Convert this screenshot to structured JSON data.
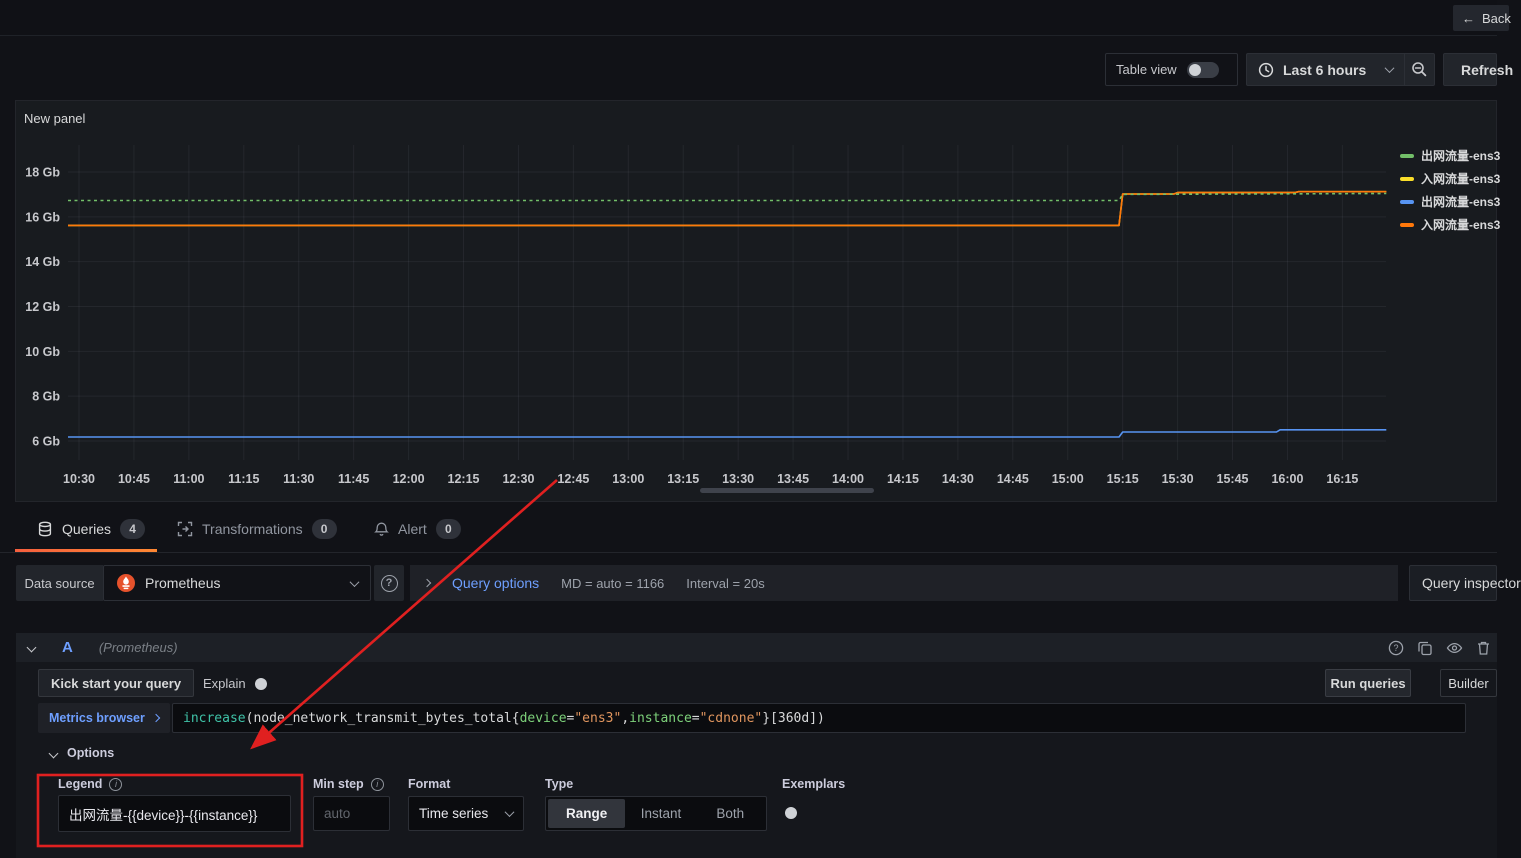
{
  "topbar": {
    "back_label": "Back"
  },
  "toolbar": {
    "table_view_label": "Table view",
    "time_range_label": "Last 6 hours",
    "refresh_label": "Refresh"
  },
  "panel": {
    "title": "New panel",
    "legend": [
      {
        "label": "出网流量-ens3",
        "color": "#73BF69"
      },
      {
        "label": "入网流量-ens3",
        "color": "#FADE2A"
      },
      {
        "label": "出网流量-ens3",
        "color": "#5794F2"
      },
      {
        "label": "入网流量-ens3",
        "color": "#FF780A"
      }
    ]
  },
  "chart_data": {
    "type": "line",
    "unit": "Gb",
    "title": "New panel",
    "legend_position": "right",
    "grid": true,
    "x_ticks": [
      "10:30",
      "10:45",
      "11:00",
      "11:15",
      "11:30",
      "11:45",
      "12:00",
      "12:15",
      "12:30",
      "12:45",
      "13:00",
      "13:15",
      "13:30",
      "13:45",
      "14:00",
      "14:15",
      "14:30",
      "14:45",
      "15:00",
      "15:15",
      "15:30",
      "15:45",
      "16:00",
      "16:15"
    ],
    "y_ticks": [
      {
        "label": "18 Gb",
        "value": 18
      },
      {
        "label": "16 Gb",
        "value": 16
      },
      {
        "label": "14 Gb",
        "value": 14
      },
      {
        "label": "12 Gb",
        "value": 12
      },
      {
        "label": "10 Gb",
        "value": 10
      },
      {
        "label": "8 Gb",
        "value": 8
      },
      {
        "label": "6 Gb",
        "value": 6
      }
    ],
    "ylim": [
      5.2,
      19.2
    ],
    "x_range": [
      "10:27",
      "16:27"
    ],
    "series": [
      {
        "name": "出网流量-ens3",
        "color": "#73BF69",
        "style": "dashed",
        "points": [
          [
            "10:27",
            16.73
          ],
          [
            "15:14",
            16.73
          ],
          [
            "15:15",
            17.0
          ],
          [
            "16:27",
            17.04
          ]
        ]
      },
      {
        "name": "入网流量-ens3",
        "color": "#FADE2A",
        "style": "solid",
        "points": [
          [
            "10:27",
            15.62
          ],
          [
            "15:14",
            15.62
          ],
          [
            "15:15",
            17.02
          ],
          [
            "15:29",
            17.02
          ],
          [
            "15:30",
            17.08
          ],
          [
            "16:02",
            17.08
          ],
          [
            "16:03",
            17.12
          ],
          [
            "16:27",
            17.12
          ]
        ]
      },
      {
        "name": "出网流量-ens3",
        "color": "#5794F2",
        "style": "solid",
        "points": [
          [
            "10:27",
            6.18
          ],
          [
            "15:14",
            6.18
          ],
          [
            "15:15",
            6.4
          ],
          [
            "15:57",
            6.4
          ],
          [
            "15:58",
            6.5
          ],
          [
            "16:27",
            6.5
          ]
        ]
      },
      {
        "name": "入网流量-ens3",
        "color": "#FF780A",
        "style": "solid",
        "points": [
          [
            "10:27",
            15.62
          ],
          [
            "15:14",
            15.62
          ],
          [
            "15:15",
            17.02
          ],
          [
            "15:29",
            17.02
          ],
          [
            "15:30",
            17.08
          ],
          [
            "16:02",
            17.08
          ],
          [
            "16:03",
            17.12
          ],
          [
            "16:27",
            17.12
          ]
        ]
      }
    ]
  },
  "tabs": [
    {
      "label": "Queries",
      "badge": "4",
      "active": true
    },
    {
      "label": "Transformations",
      "badge": "0",
      "active": false
    },
    {
      "label": "Alert",
      "badge": "0",
      "active": false
    }
  ],
  "datasource_row": {
    "label": "Data source",
    "value": "Prometheus",
    "query_options_label": "Query options",
    "max_data_points": "MD = auto = 1166",
    "interval": "Interval = 20s",
    "inspector_label": "Query inspector"
  },
  "query": {
    "ref_id": "A",
    "datasource_hint": "(Prometheus)",
    "kick_start_label": "Kick start your query",
    "explain_label": "Explain",
    "run_queries_label": "Run queries",
    "builder_label": "Builder",
    "metrics_browser_label": "Metrics browser",
    "expr": "increase(node_network_transmit_bytes_total{device=\"ens3\",instance=\"cdnone\"}[360d])",
    "expr_segments": [
      {
        "t": "increase",
        "c": "fn"
      },
      {
        "t": "(",
        "c": "pl"
      },
      {
        "t": "node_network_transmit_bytes_total",
        "c": "pl"
      },
      {
        "t": "{",
        "c": "pl"
      },
      {
        "t": "device",
        "c": "lbl"
      },
      {
        "t": "=",
        "c": "pl"
      },
      {
        "t": "\"ens3\"",
        "c": "str"
      },
      {
        "t": ",",
        "c": "pl"
      },
      {
        "t": "instance",
        "c": "lbl"
      },
      {
        "t": "=",
        "c": "pl"
      },
      {
        "t": "\"cdnone\"",
        "c": "str"
      },
      {
        "t": "}",
        "c": "pl"
      },
      {
        "t": "[360d]",
        "c": "pl"
      },
      {
        "t": ")",
        "c": "pl"
      }
    ],
    "options_label": "Options",
    "fields": {
      "legend_label": "Legend",
      "legend_value": "出网流量-{{device}}-{{instance}}",
      "min_step_label": "Min step",
      "min_step_placeholder": "auto",
      "format_label": "Format",
      "format_value": "Time series",
      "type_label": "Type",
      "type_options": [
        "Range",
        "Instant",
        "Both"
      ],
      "type_selected": "Range",
      "exemplars_label": "Exemplars"
    }
  },
  "icons": {
    "back_arrow": "←",
    "help_glyph": "?",
    "info_glyph": "i"
  },
  "colors": {
    "accent_blue": "#6e9fff",
    "tab_underline_from": "#f55f3e",
    "tab_underline_to": "#ff8833",
    "annotation_red": "#e02020",
    "prometheus_orange": "#e6522c"
  }
}
